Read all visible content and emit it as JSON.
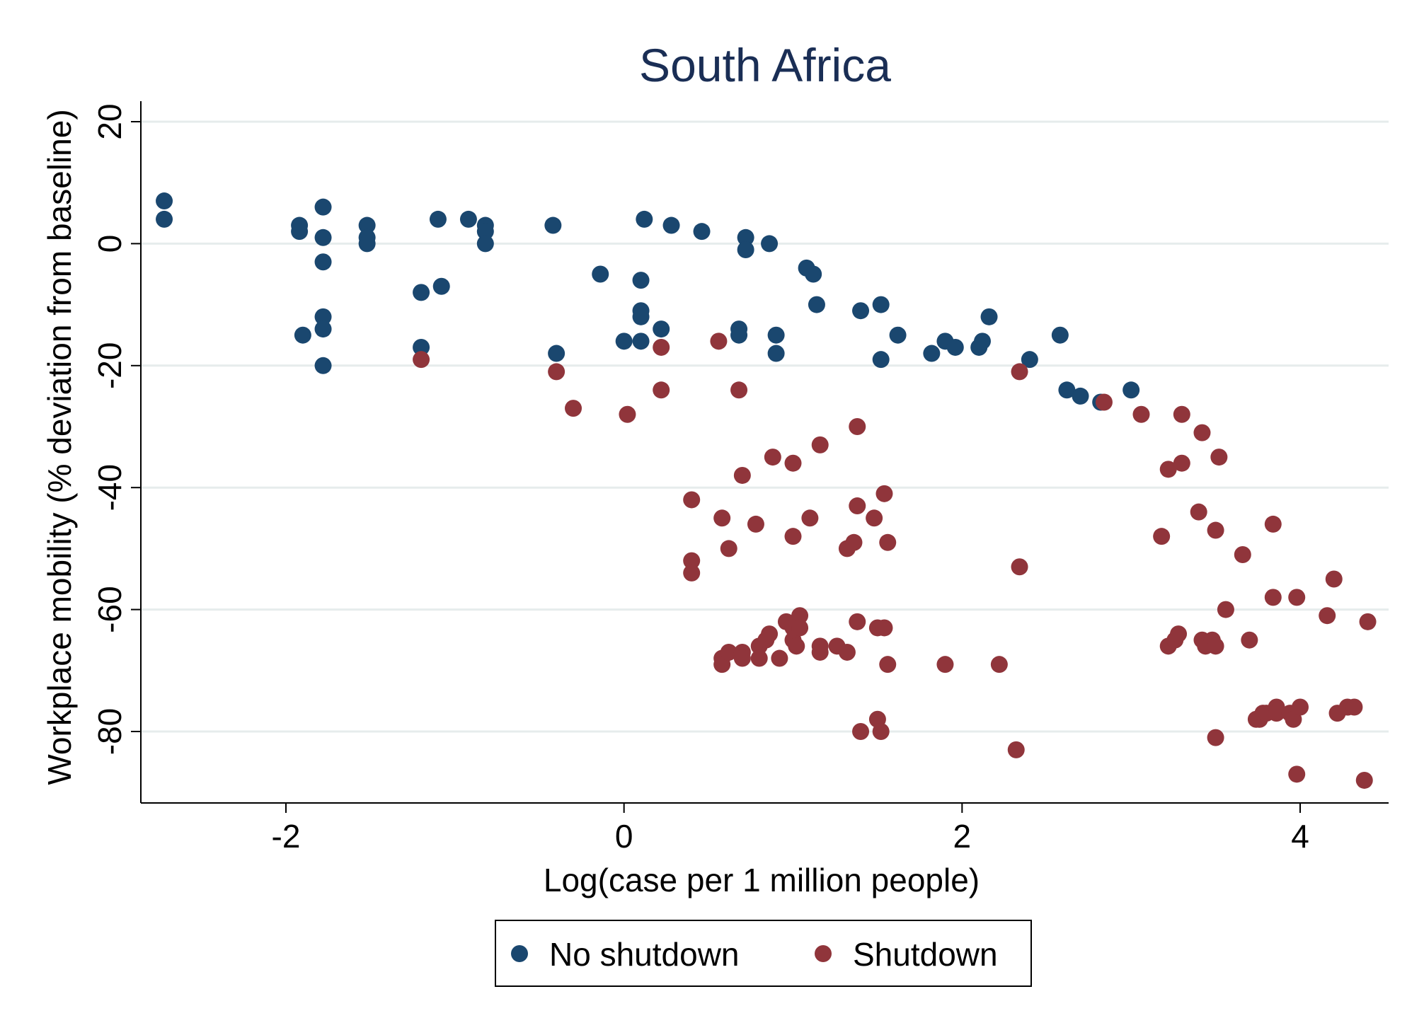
{
  "chart_data": {
    "type": "scatter",
    "title": "South Africa",
    "xlabel": "Log(case per 1 million people)",
    "ylabel": "Workplace mobility (% deviation from baseline)",
    "xlim": [
      -2.8,
      4.6
    ],
    "ylim": [
      -92,
      24
    ],
    "xticks": [
      -2,
      0,
      2,
      4
    ],
    "yticks": [
      20,
      0,
      -20,
      -40,
      -60,
      -80
    ],
    "grid": true,
    "legend_position": "bottom",
    "colors": {
      "No shutdown": "#1a476f",
      "Shutdown": "#90353b"
    },
    "series": [
      {
        "name": "No shutdown",
        "color": "#1a476f",
        "points": [
          [
            -2.72,
            7
          ],
          [
            -2.72,
            4
          ],
          [
            -1.92,
            3
          ],
          [
            -1.92,
            2
          ],
          [
            -1.9,
            -15
          ],
          [
            -1.78,
            6
          ],
          [
            -1.78,
            1
          ],
          [
            -1.78,
            -3
          ],
          [
            -1.78,
            -12
          ],
          [
            -1.78,
            -14
          ],
          [
            -1.78,
            -20
          ],
          [
            -1.52,
            3
          ],
          [
            -1.52,
            1
          ],
          [
            -1.52,
            0
          ],
          [
            -1.1,
            4
          ],
          [
            -1.08,
            -7
          ],
          [
            -1.2,
            -8
          ],
          [
            -1.2,
            -17
          ],
          [
            -0.92,
            4
          ],
          [
            -0.82,
            3
          ],
          [
            -0.82,
            2
          ],
          [
            -0.82,
            0
          ],
          [
            -0.42,
            3
          ],
          [
            -0.4,
            -18
          ],
          [
            -0.14,
            -5
          ],
          [
            0.0,
            -16
          ],
          [
            0.1,
            -16
          ],
          [
            0.1,
            -11
          ],
          [
            0.1,
            -12
          ],
          [
            0.1,
            -6
          ],
          [
            0.12,
            4
          ],
          [
            0.22,
            -14
          ],
          [
            0.28,
            3
          ],
          [
            0.46,
            2
          ],
          [
            0.68,
            -14
          ],
          [
            0.68,
            -15
          ],
          [
            0.72,
            1
          ],
          [
            0.72,
            -1
          ],
          [
            0.86,
            0
          ],
          [
            0.9,
            -15
          ],
          [
            0.9,
            -18
          ],
          [
            1.08,
            -4
          ],
          [
            1.12,
            -5
          ],
          [
            1.14,
            -10
          ],
          [
            1.4,
            -11
          ],
          [
            1.52,
            -10
          ],
          [
            1.52,
            -19
          ],
          [
            1.62,
            -15
          ],
          [
            1.82,
            -18
          ],
          [
            1.9,
            -16
          ],
          [
            1.96,
            -17
          ],
          [
            2.1,
            -17
          ],
          [
            2.12,
            -16
          ],
          [
            2.16,
            -12
          ],
          [
            2.4,
            -19
          ],
          [
            2.58,
            -15
          ],
          [
            2.62,
            -24
          ],
          [
            2.7,
            -25
          ],
          [
            2.82,
            -26
          ],
          [
            3.0,
            -24
          ]
        ]
      },
      {
        "name": "Shutdown",
        "color": "#90353b",
        "points": [
          [
            -1.2,
            -19
          ],
          [
            -0.4,
            -21
          ],
          [
            -0.3,
            -27
          ],
          [
            0.02,
            -28
          ],
          [
            0.22,
            -17
          ],
          [
            0.22,
            -24
          ],
          [
            0.4,
            -42
          ],
          [
            0.4,
            -52
          ],
          [
            0.4,
            -54
          ],
          [
            0.56,
            -16
          ],
          [
            0.58,
            -45
          ],
          [
            0.58,
            -68
          ],
          [
            0.58,
            -69
          ],
          [
            0.62,
            -50
          ],
          [
            0.62,
            -67
          ],
          [
            0.68,
            -24
          ],
          [
            0.7,
            -38
          ],
          [
            0.7,
            -67
          ],
          [
            0.7,
            -68
          ],
          [
            0.78,
            -46
          ],
          [
            0.8,
            -66
          ],
          [
            0.8,
            -68
          ],
          [
            0.84,
            -65
          ],
          [
            0.86,
            -64
          ],
          [
            0.88,
            -35
          ],
          [
            0.92,
            -68
          ],
          [
            0.96,
            -62
          ],
          [
            1.0,
            -48
          ],
          [
            1.0,
            -36
          ],
          [
            1.0,
            -63
          ],
          [
            1.0,
            -65
          ],
          [
            1.02,
            -66
          ],
          [
            1.04,
            -61
          ],
          [
            1.04,
            -63
          ],
          [
            1.1,
            -45
          ],
          [
            1.16,
            -33
          ],
          [
            1.16,
            -66
          ],
          [
            1.16,
            -67
          ],
          [
            1.26,
            -66
          ],
          [
            1.32,
            -67
          ],
          [
            1.32,
            -50
          ],
          [
            1.36,
            -49
          ],
          [
            1.38,
            -30
          ],
          [
            1.38,
            -43
          ],
          [
            1.38,
            -62
          ],
          [
            1.4,
            -80
          ],
          [
            1.48,
            -45
          ],
          [
            1.5,
            -63
          ],
          [
            1.5,
            -78
          ],
          [
            1.52,
            -80
          ],
          [
            1.54,
            -63
          ],
          [
            1.54,
            -41
          ],
          [
            1.56,
            -49
          ],
          [
            1.56,
            -69
          ],
          [
            1.9,
            -69
          ],
          [
            2.22,
            -69
          ],
          [
            2.32,
            -83
          ],
          [
            2.34,
            -21
          ],
          [
            2.34,
            -53
          ],
          [
            2.84,
            -26
          ],
          [
            3.06,
            -28
          ],
          [
            3.18,
            -48
          ],
          [
            3.22,
            -37
          ],
          [
            3.22,
            -66
          ],
          [
            3.26,
            -65
          ],
          [
            3.28,
            -64
          ],
          [
            3.3,
            -28
          ],
          [
            3.3,
            -36
          ],
          [
            3.4,
            -44
          ],
          [
            3.42,
            -31
          ],
          [
            3.42,
            -65
          ],
          [
            3.44,
            -66
          ],
          [
            3.48,
            -65
          ],
          [
            3.5,
            -47
          ],
          [
            3.5,
            -66
          ],
          [
            3.5,
            -81
          ],
          [
            3.52,
            -35
          ],
          [
            3.56,
            -60
          ],
          [
            3.66,
            -51
          ],
          [
            3.7,
            -65
          ],
          [
            3.74,
            -78
          ],
          [
            3.76,
            -78
          ],
          [
            3.78,
            -77
          ],
          [
            3.8,
            -77
          ],
          [
            3.84,
            -46
          ],
          [
            3.84,
            -58
          ],
          [
            3.86,
            -76
          ],
          [
            3.86,
            -77
          ],
          [
            3.94,
            -77
          ],
          [
            3.96,
            -78
          ],
          [
            3.98,
            -87
          ],
          [
            3.98,
            -58
          ],
          [
            4.0,
            -76
          ],
          [
            4.16,
            -61
          ],
          [
            4.2,
            -55
          ],
          [
            4.22,
            -77
          ],
          [
            4.28,
            -76
          ],
          [
            4.32,
            -76
          ],
          [
            4.38,
            -88
          ],
          [
            4.4,
            -62
          ]
        ]
      }
    ]
  }
}
